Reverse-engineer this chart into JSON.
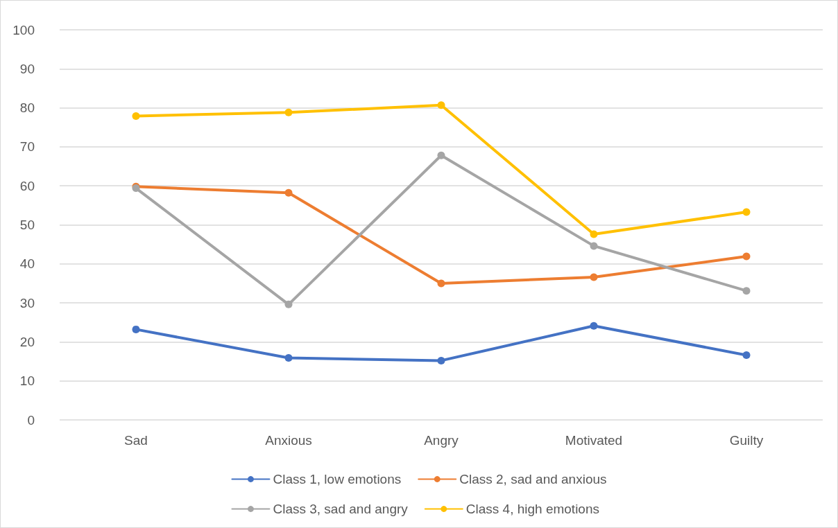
{
  "chart_data": {
    "type": "line",
    "categories": [
      "Sad",
      "Anxious",
      "Angry",
      "Motivated",
      "Guilty"
    ],
    "series": [
      {
        "name": "Class 1, low emotions",
        "color": "#4472c4",
        "values": [
          23.2,
          15.9,
          15.2,
          24.1,
          16.6
        ]
      },
      {
        "name": "Class 2, sad and anxious",
        "color": "#ed7d31",
        "values": [
          59.8,
          58.2,
          35.0,
          36.6,
          41.9
        ]
      },
      {
        "name": "Class 3, sad and angry",
        "color": "#a5a5a5",
        "values": [
          59.4,
          29.6,
          67.8,
          44.6,
          33.1
        ]
      },
      {
        "name": "Class 4, high emotions",
        "color": "#ffc000",
        "values": [
          77.9,
          78.8,
          80.7,
          47.6,
          53.3
        ]
      }
    ],
    "ylim": [
      0,
      100
    ],
    "yticks": [
      0,
      10,
      20,
      30,
      40,
      50,
      60,
      70,
      80,
      90,
      100
    ],
    "grid": "y",
    "legend": "bottom",
    "marker": "circle",
    "line_style": "solid"
  }
}
